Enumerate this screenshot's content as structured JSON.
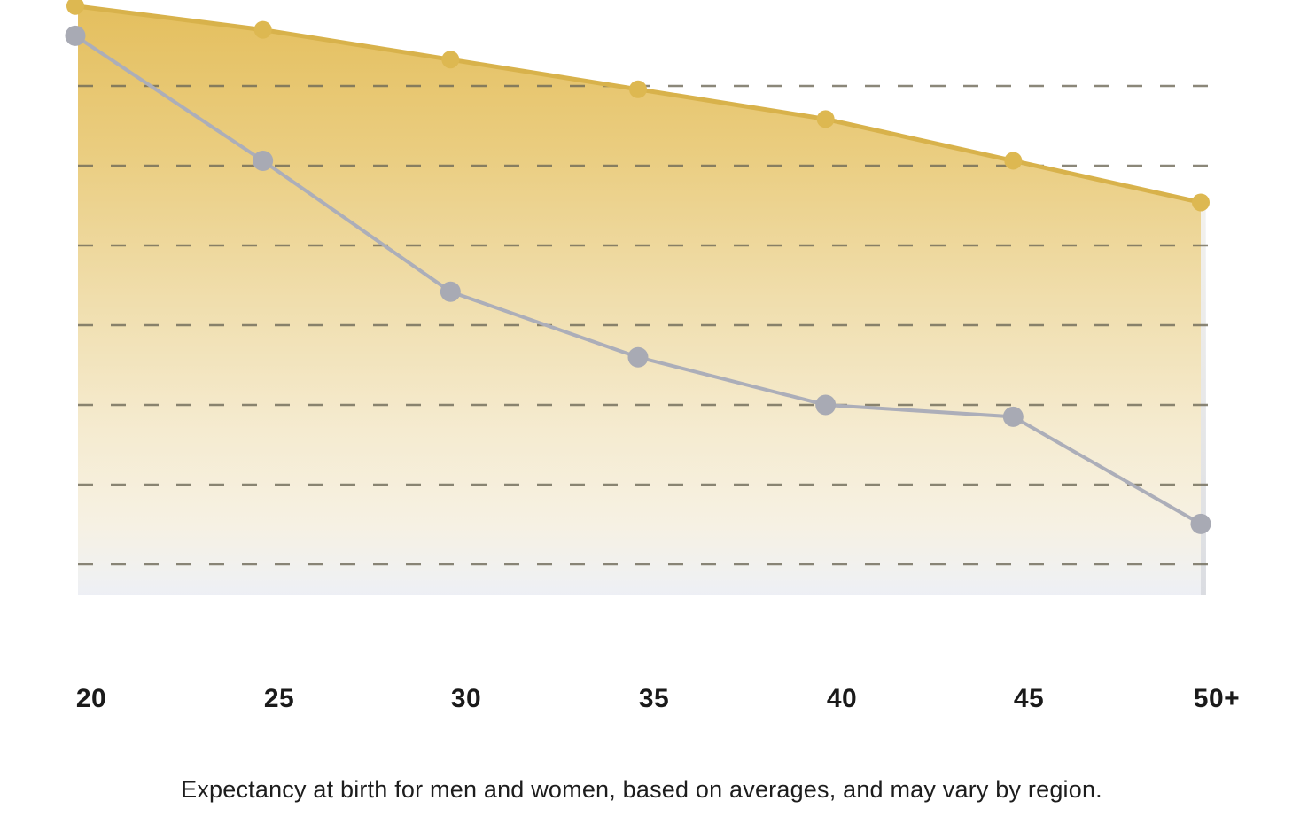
{
  "page": {
    "background_color": "#ffffff"
  },
  "chart_data": {
    "type": "area",
    "categories": [
      "20",
      "25",
      "30",
      "35",
      "40",
      "45",
      "50+"
    ],
    "series": [
      {
        "name": "gold-series",
        "style": "area-with-line-and-markers",
        "line_color": "#d8b24b",
        "marker_color": "#ddb851",
        "fill_gradient_top": "#e4bf5e",
        "fill_gradient_bottom": "#edeff5",
        "values": [
          99,
          95,
          90,
          85,
          80,
          73,
          66
        ]
      },
      {
        "name": "gray-series",
        "style": "line-with-markers",
        "line_color": "#acaeb9",
        "marker_color": "#a8aab4",
        "values": [
          94,
          73,
          51,
          40,
          32,
          30,
          12
        ]
      }
    ],
    "title": "",
    "xlabel": "",
    "ylabel": "",
    "ylim": [
      0,
      100
    ],
    "y_axis_labels_visible": false,
    "grid": "horizontal-dashed",
    "gridline_color": "#6f6a58",
    "gridline_count": 7,
    "legend": "none"
  },
  "x_axis": {
    "labels": [
      "20",
      "25",
      "30",
      "35",
      "40",
      "45",
      "50+"
    ],
    "label_color": "#1a1a1a"
  },
  "caption": {
    "text": "Expectancy at birth for men and women, based on averages, and may vary by region."
  }
}
